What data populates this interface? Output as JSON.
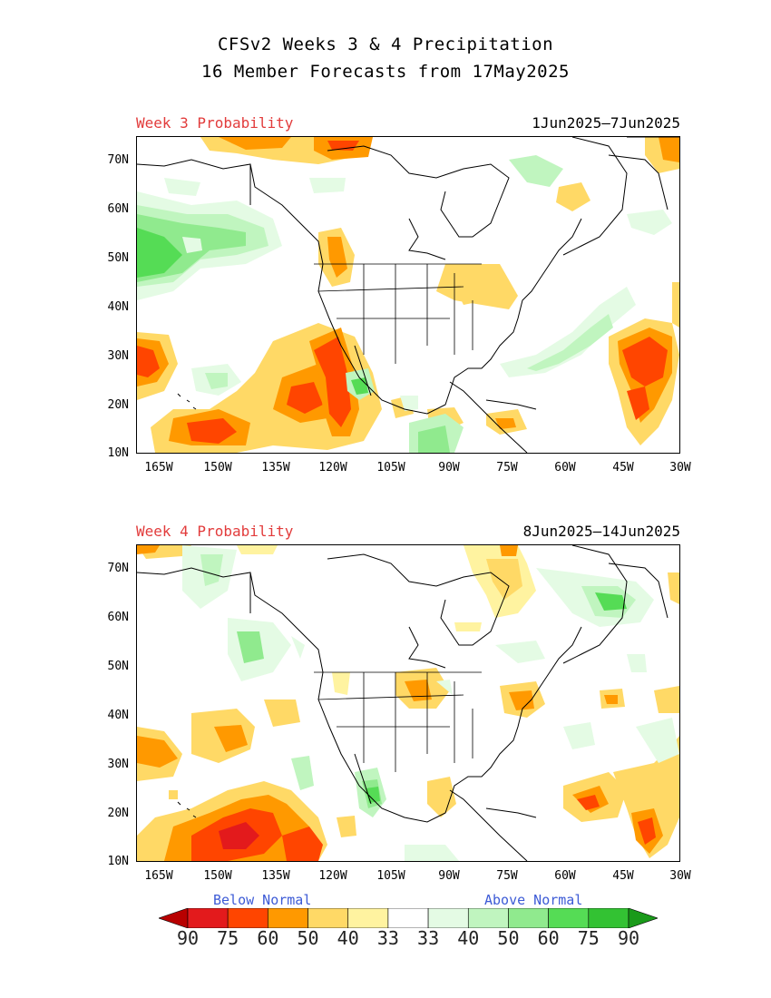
{
  "title_line1": "CFSv2 Weeks 3 & 4 Precipitation",
  "title_line2": "16 Member Forecasts from 17May2025",
  "panels": [
    {
      "label": "Week 3 Probability",
      "dates": "1Jun2025—7Jun2025"
    },
    {
      "label": "Week 4 Probability",
      "dates": "8Jun2025—14Jun2025"
    }
  ],
  "lat_ticks": [
    "70N",
    "60N",
    "50N",
    "40N",
    "30N",
    "20N",
    "10N"
  ],
  "lon_ticks": [
    "165W",
    "150W",
    "135W",
    "120W",
    "105W",
    "90W",
    "75W",
    "60W",
    "45W",
    "30W"
  ],
  "legend": {
    "below_label": "Below Normal",
    "above_label": "Above Normal",
    "values": [
      "90",
      "75",
      "60",
      "50",
      "40",
      "33",
      "33",
      "40",
      "50",
      "60",
      "75",
      "90"
    ],
    "colors": [
      "#b80000",
      "#e31a1c",
      "#ff4500",
      "#ff9900",
      "#ffd966",
      "#fff3a0",
      "#ffffff",
      "#e4fbe4",
      "#c0f5bf",
      "#90ea8e",
      "#55dc55",
      "#33c233",
      "#1a9a1a"
    ]
  }
}
